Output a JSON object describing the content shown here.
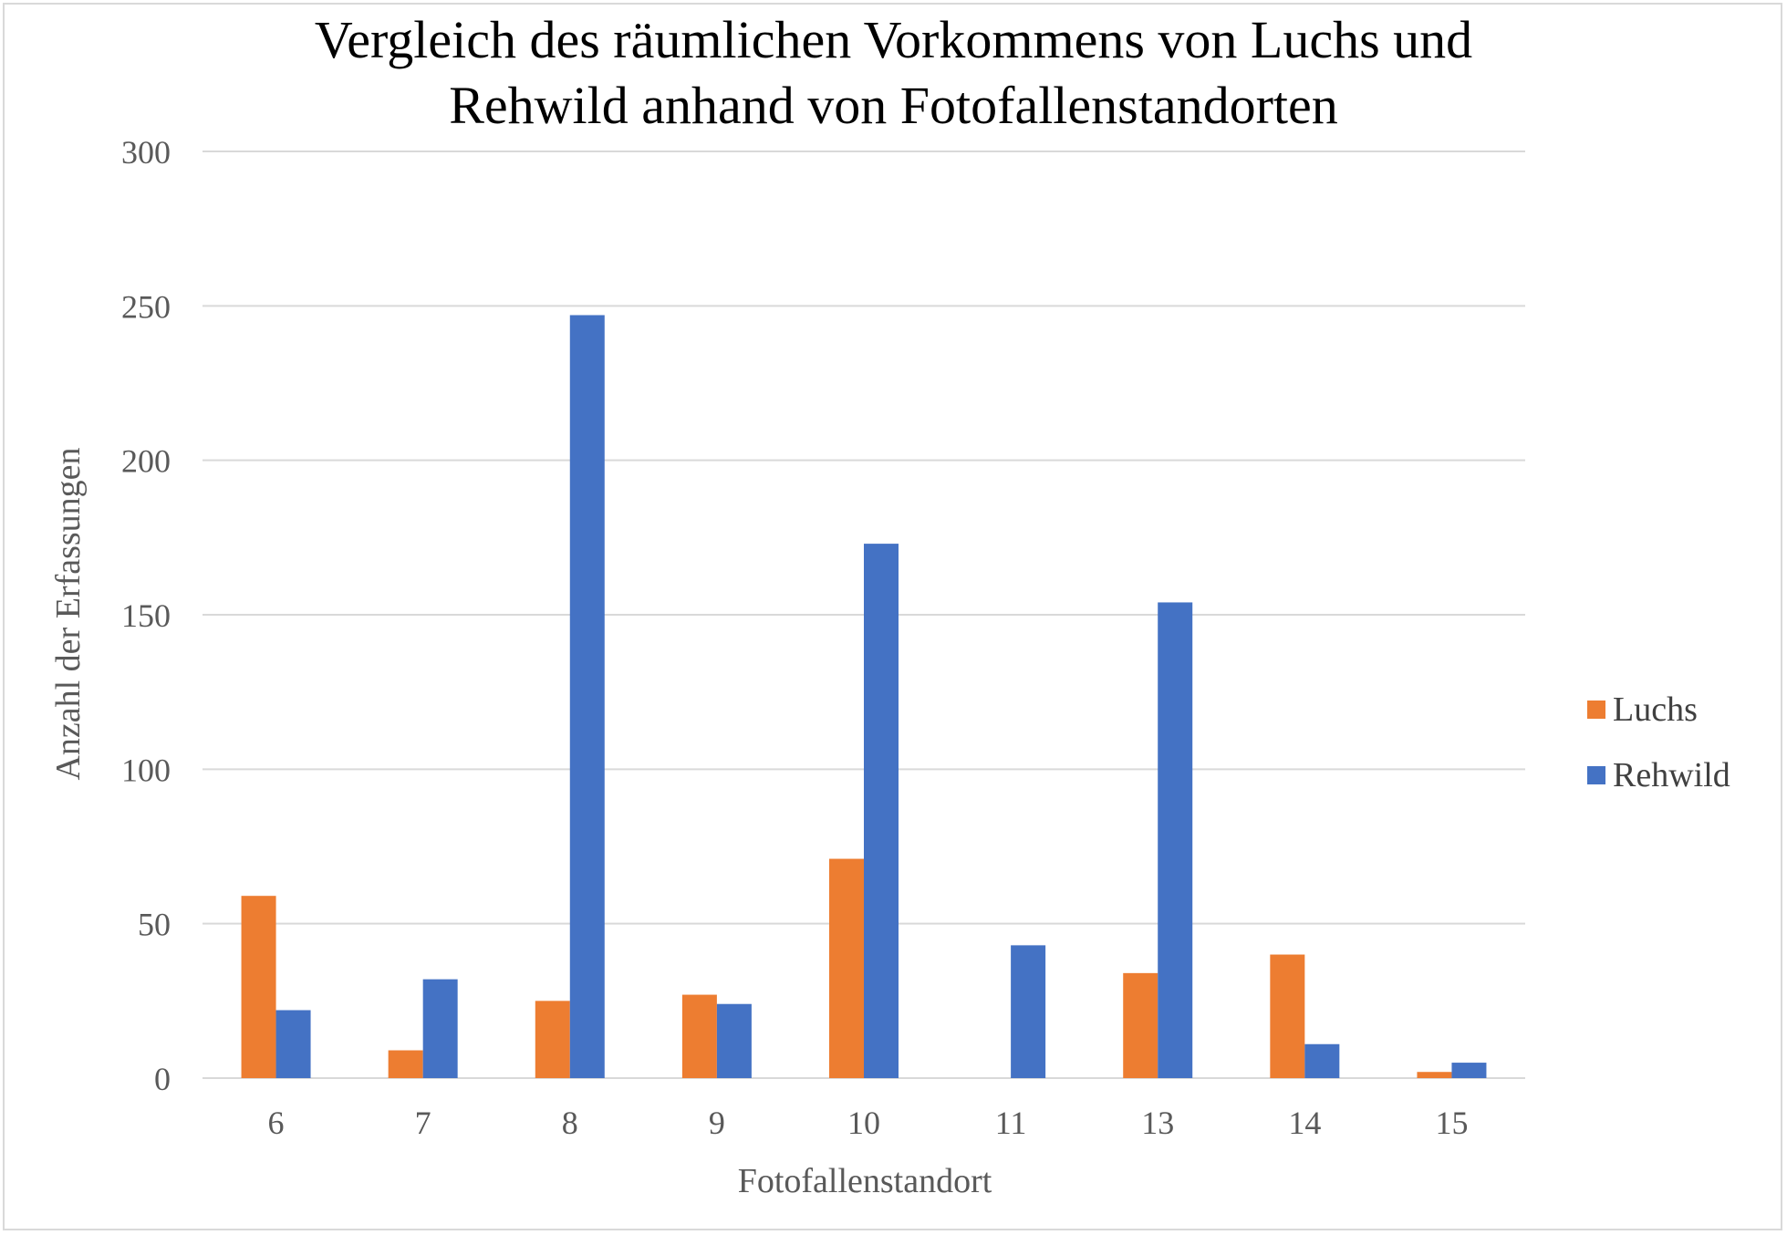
{
  "colors": {
    "luchs": "#ed7d31",
    "rehwild": "#4472c4",
    "grid": "#d9d9d9",
    "axis_text": "#595959"
  },
  "chart_data": {
    "type": "bar",
    "title": [
      "Vergleich des räumlichen Vorkommens von Luchs und",
      "Rehwild anhand von Fotofallenstandorten"
    ],
    "xlabel": "Fotofallenstandort",
    "ylabel": "Anzahl der Erfassungen",
    "categories": [
      "6",
      "7",
      "8",
      "9",
      "10",
      "11",
      "13",
      "14",
      "15"
    ],
    "series": [
      {
        "name": "Luchs",
        "color": "#ed7d31",
        "values": [
          59,
          9,
          25,
          27,
          71,
          0,
          34,
          40,
          2
        ]
      },
      {
        "name": "Rehwild",
        "color": "#4472c4",
        "values": [
          22,
          32,
          247,
          24,
          173,
          43,
          154,
          11,
          5
        ]
      }
    ],
    "ylim": [
      0,
      300
    ],
    "yticks": [
      "0",
      "50",
      "100",
      "150",
      "200",
      "250",
      "300"
    ],
    "grid": true,
    "legend": "right"
  }
}
